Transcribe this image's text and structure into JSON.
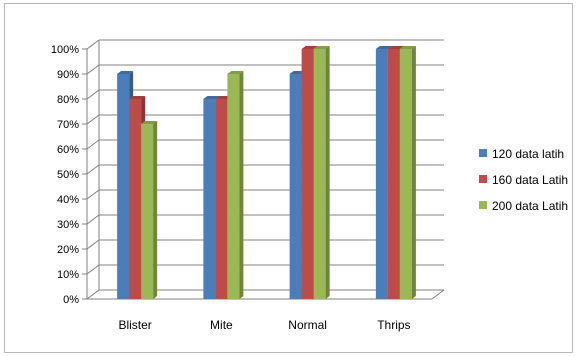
{
  "chart_data": {
    "type": "bar",
    "style": "3d-clustered-column",
    "categories": [
      "Blister",
      "Mite",
      "Normal",
      "Thrips"
    ],
    "series": [
      {
        "name": "120 data latih",
        "color": "#4a7ebb",
        "values": [
          90,
          80,
          90,
          100
        ]
      },
      {
        "name": "160 data Latih",
        "color": "#be4b48",
        "values": [
          80,
          80,
          100,
          100
        ]
      },
      {
        "name": "200 data Latih",
        "color": "#98b954",
        "values": [
          70,
          90,
          100,
          100
        ]
      }
    ],
    "y_ticks": [
      "0%",
      "10%",
      "20%",
      "30%",
      "40%",
      "50%",
      "60%",
      "70%",
      "80%",
      "90%",
      "100%"
    ],
    "ylim": [
      0,
      100
    ],
    "grid": true,
    "legend_position": "right",
    "title": "",
    "xlabel": "",
    "ylabel": ""
  }
}
